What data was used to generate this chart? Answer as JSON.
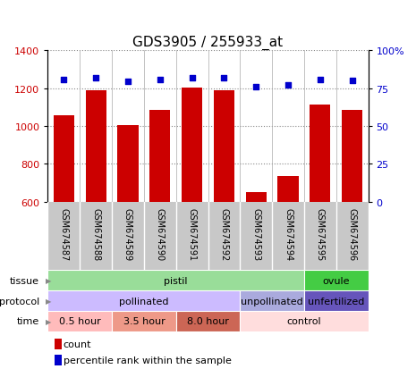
{
  "title": "GDS3905 / 255933_at",
  "samples": [
    "GSM674587",
    "GSM674588",
    "GSM674589",
    "GSM674590",
    "GSM674591",
    "GSM674592",
    "GSM674593",
    "GSM674594",
    "GSM674595",
    "GSM674596"
  ],
  "counts": [
    1055,
    1190,
    1005,
    1085,
    1205,
    1190,
    650,
    735,
    1115,
    1085
  ],
  "percentiles": [
    80.5,
    82.0,
    79.5,
    80.5,
    82.0,
    82.0,
    76.0,
    77.0,
    80.5,
    80.0
  ],
  "ylim_left": [
    600,
    1400
  ],
  "ylim_right": [
    0,
    100
  ],
  "yticks_left": [
    600,
    800,
    1000,
    1200,
    1400
  ],
  "yticks_right": [
    0,
    25,
    50,
    75,
    100
  ],
  "bar_color": "#cc0000",
  "dot_color": "#0000cc",
  "grid_color": "#888888",
  "xtick_bg_color": "#c8c8c8",
  "xtick_sep_color": "#ffffff",
  "title_fontsize": 11,
  "axis_fontsize": 8,
  "row_fontsize": 8,
  "tissue_groups": [
    {
      "label": "pistil",
      "start": 0,
      "end": 8,
      "color": "#99dd99"
    },
    {
      "label": "ovule",
      "start": 8,
      "end": 10,
      "color": "#44cc44"
    }
  ],
  "protocol_groups": [
    {
      "label": "pollinated",
      "start": 0,
      "end": 6,
      "color": "#ccbbff"
    },
    {
      "label": "unpollinated",
      "start": 6,
      "end": 8,
      "color": "#aaaadd"
    },
    {
      "label": "unfertilized",
      "start": 8,
      "end": 10,
      "color": "#6655bb"
    }
  ],
  "time_groups": [
    {
      "label": "0.5 hour",
      "start": 0,
      "end": 2,
      "color": "#ffbbbb"
    },
    {
      "label": "3.5 hour",
      "start": 2,
      "end": 4,
      "color": "#ee9988"
    },
    {
      "label": "8.0 hour",
      "start": 4,
      "end": 6,
      "color": "#cc6655"
    },
    {
      "label": "control",
      "start": 6,
      "end": 10,
      "color": "#ffdddd"
    }
  ],
  "fig_width": 4.65,
  "fig_height": 4.14,
  "dpi": 100
}
